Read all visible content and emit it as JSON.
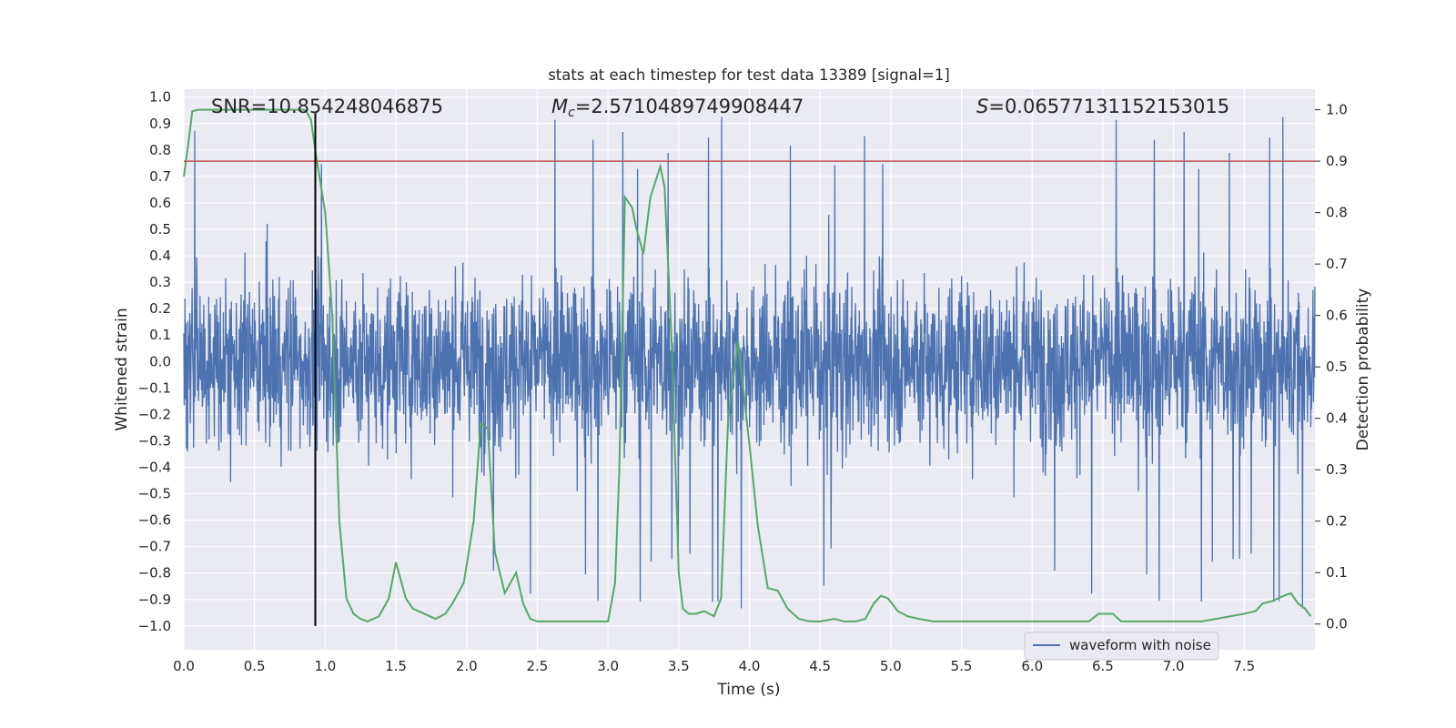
{
  "chart_data": {
    "type": "line",
    "title": "stats at each timestep for test data 13389 [signal=1]",
    "xlabel": "Time (s)",
    "ylabel_left": "Whitened strain",
    "ylabel_right": "Detection probability",
    "xlim": [
      0,
      8
    ],
    "ylim_left": [
      -1.09,
      1.03
    ],
    "ylim_right": [
      -0.05,
      1.04
    ],
    "x_ticks": [
      0.0,
      0.5,
      1.0,
      1.5,
      2.0,
      2.5,
      3.0,
      3.5,
      4.0,
      4.5,
      5.0,
      5.5,
      6.0,
      6.5,
      7.0,
      7.5
    ],
    "x_tick_labels": [
      "0.0",
      "0.5",
      "1.0",
      "1.5",
      "2.0",
      "2.5",
      "3.0",
      "3.5",
      "4.0",
      "4.5",
      "5.0",
      "5.5",
      "6.0",
      "6.5",
      "7.0",
      "7.5"
    ],
    "y_left_ticks": [
      1.0,
      0.9,
      0.8,
      0.7,
      0.6,
      0.5,
      0.4,
      0.3,
      0.2,
      0.1,
      0.0,
      -0.1,
      -0.2,
      -0.3,
      -0.4,
      -0.5,
      -0.6,
      -0.7,
      -0.8,
      -0.9,
      -1.0
    ],
    "y_left_tick_labels": [
      "1.0",
      "0.9",
      "0.8",
      "0.7",
      "0.6",
      "0.5",
      "0.4",
      "0.3",
      "0.2",
      "0.1",
      "0.0",
      "−0.1",
      "−0.2",
      "−0.3",
      "−0.4",
      "−0.5",
      "−0.6",
      "−0.7",
      "−0.8",
      "−0.9",
      "−1.0"
    ],
    "y_right_ticks": [
      1.0,
      0.9,
      0.8,
      0.7,
      0.6,
      0.5,
      0.4,
      0.3,
      0.2,
      0.1,
      0.0
    ],
    "y_right_tick_labels": [
      "1.0",
      "0.9",
      "0.8",
      "0.7",
      "0.6",
      "0.5",
      "0.4",
      "0.3",
      "0.2",
      "0.1",
      "0.0"
    ],
    "grid": true,
    "legend_placement": "lower-right",
    "annotations": {
      "snr": "SNR=10.854248046875",
      "mc_symbol": "M",
      "mc_sub": "c",
      "mc_value": "=2.5710489749908447",
      "s_symbol": "S",
      "s_value": "=0.06577131152153015"
    },
    "series": [
      {
        "name": "waveform with noise",
        "axis": "left",
        "color": "#4c72b0",
        "description_values": "noisy whitened strain, mostly within ±0.5 with spikes to about ±0.95, sampled across 0–8 s",
        "envelope": {
          "typical_amplitude": 0.5,
          "max_positive": 0.93,
          "max_negative": -1.0
        }
      },
      {
        "axis": "right",
        "color": "#55a868",
        "x": [
          0.0,
          0.03,
          0.06,
          0.1,
          0.2,
          0.3,
          0.4,
          0.5,
          0.6,
          0.7,
          0.75,
          0.8,
          0.85,
          0.87,
          0.9,
          0.93,
          1.0,
          1.05,
          1.1,
          1.15,
          1.2,
          1.25,
          1.3,
          1.38,
          1.45,
          1.5,
          1.57,
          1.62,
          1.7,
          1.78,
          1.85,
          1.9,
          1.98,
          2.05,
          2.1,
          2.15,
          2.2,
          2.27,
          2.35,
          2.4,
          2.45,
          2.5,
          2.55,
          2.6,
          2.7,
          2.8,
          2.9,
          3.0,
          3.05,
          3.08,
          3.12,
          3.17,
          3.2,
          3.25,
          3.3,
          3.37,
          3.4,
          3.45,
          3.5,
          3.53,
          3.57,
          3.62,
          3.68,
          3.75,
          3.8,
          3.85,
          3.92,
          4.0,
          4.06,
          4.13,
          4.2,
          4.27,
          4.35,
          4.43,
          4.5,
          4.6,
          4.67,
          4.75,
          4.82,
          4.88,
          4.93,
          4.98,
          5.05,
          5.12,
          5.2,
          5.3,
          5.45,
          5.6,
          5.75,
          5.9,
          6.0,
          6.1,
          6.2,
          6.3,
          6.4,
          6.47,
          6.52,
          6.57,
          6.63,
          6.7,
          6.8,
          6.9,
          7.0,
          7.1,
          7.2,
          7.3,
          7.4,
          7.5,
          7.58,
          7.63,
          7.7,
          7.78,
          7.83,
          7.88,
          7.93,
          7.97
        ],
        "y": [
          0.87,
          0.93,
          0.997,
          1.0,
          1.0,
          1.0,
          1.0,
          1.0,
          1.0,
          1.0,
          1.0,
          1.0,
          1.0,
          0.995,
          0.98,
          0.92,
          0.8,
          0.6,
          0.2,
          0.05,
          0.02,
          0.01,
          0.005,
          0.015,
          0.05,
          0.12,
          0.05,
          0.03,
          0.02,
          0.01,
          0.02,
          0.04,
          0.08,
          0.2,
          0.39,
          0.38,
          0.14,
          0.06,
          0.1,
          0.04,
          0.01,
          0.005,
          0.005,
          0.005,
          0.005,
          0.005,
          0.005,
          0.005,
          0.08,
          0.3,
          0.83,
          0.81,
          0.77,
          0.72,
          0.83,
          0.89,
          0.85,
          0.55,
          0.1,
          0.03,
          0.02,
          0.02,
          0.025,
          0.015,
          0.05,
          0.4,
          0.55,
          0.35,
          0.19,
          0.07,
          0.065,
          0.03,
          0.01,
          0.005,
          0.005,
          0.01,
          0.005,
          0.005,
          0.01,
          0.04,
          0.055,
          0.05,
          0.025,
          0.015,
          0.01,
          0.005,
          0.005,
          0.005,
          0.005,
          0.005,
          0.005,
          0.005,
          0.005,
          0.005,
          0.005,
          0.02,
          0.02,
          0.02,
          0.005,
          0.005,
          0.005,
          0.005,
          0.005,
          0.005,
          0.005,
          0.01,
          0.015,
          0.02,
          0.025,
          0.04,
          0.045,
          0.055,
          0.06,
          0.04,
          0.03,
          0.015
        ]
      }
    ],
    "threshold_line": {
      "axis": "right",
      "value": 0.9,
      "color": "#c44e52"
    },
    "marker_line": {
      "x": 0.93,
      "y_from": -1.0,
      "y_to": 0.94,
      "color": "#000000"
    }
  }
}
